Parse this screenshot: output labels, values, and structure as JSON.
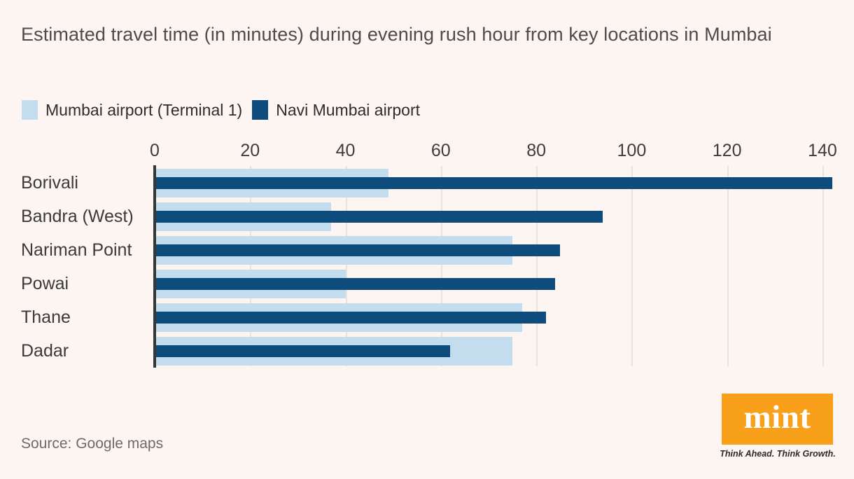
{
  "title": "Estimated travel time (in minutes) during evening rush hour from key locations in Mumbai",
  "legend": {
    "items": [
      {
        "label": "Mumbai airport (Terminal 1)",
        "color": "#c3ddee"
      },
      {
        "label": "Navi Mumbai airport",
        "color": "#0d4c7d"
      }
    ]
  },
  "chart_data": {
    "type": "bar",
    "orientation": "horizontal",
    "title": "Estimated travel time (in minutes) during evening rush hour from key locations in Mumbai",
    "categories": [
      "Borivali",
      "Bandra (West)",
      "Nariman Point",
      "Powai",
      "Thane",
      "Dadar"
    ],
    "series": [
      {
        "name": "Mumbai airport (Terminal 1)",
        "color": "#c3ddee",
        "values": [
          49,
          37,
          75,
          40,
          77,
          75
        ]
      },
      {
        "name": "Navi Mumbai airport",
        "color": "#0d4c7d",
        "values": [
          142,
          94,
          85,
          84,
          82,
          62
        ]
      }
    ],
    "xlabel": "",
    "ylabel": "",
    "xlim": [
      0,
      145
    ],
    "xticks": [
      0,
      20,
      40,
      60,
      80,
      100,
      120,
      140
    ],
    "grid": "vertical",
    "legend_position": "top-left"
  },
  "source": "Source: Google maps",
  "logo": {
    "brand": "mint",
    "tagline": "Think Ahead. Think Growth.",
    "bg_color": "#f9a01b"
  },
  "colors": {
    "background": "#fdf5f2",
    "gridline": "#e9e3e0",
    "axis": "#363636",
    "title_text": "#4c4c4c",
    "tick_text": "#3d3d3d",
    "source_text": "#6b6b6b"
  }
}
